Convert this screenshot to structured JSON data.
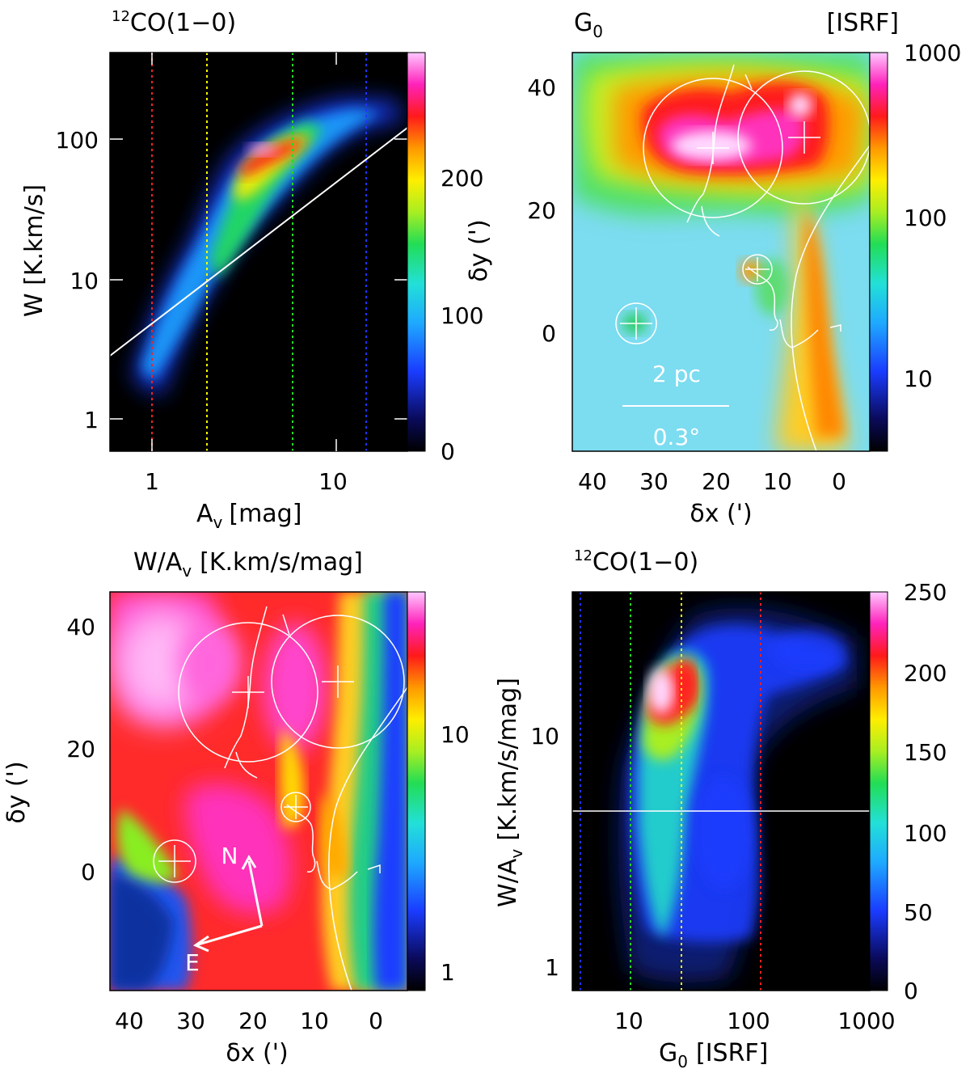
{
  "panels": {
    "top_left": {
      "title": "CO(1−0)",
      "title_sup": "12",
      "xlabel_main": "A",
      "xlabel_sub": "v",
      "xlabel_unit": "[mag]",
      "ylabel": "W [K.km/s]",
      "xticks": [
        "1",
        "10"
      ],
      "yticks": [
        "100",
        "10",
        "1"
      ],
      "cbar_ticks": [
        "200",
        "100",
        "0"
      ],
      "cbar_label": "δy (')"
    },
    "top_right": {
      "title": "G",
      "title_sub": "0",
      "title_unit": "[ISRF]",
      "xlabel": "δx (')",
      "yticks": [
        "40",
        "20",
        "0"
      ],
      "xticks": [
        "40",
        "30",
        "20",
        "10",
        "0"
      ],
      "cbar_ticks": [
        "1000",
        "100",
        "10"
      ],
      "scale_label_top": "2 pc",
      "scale_label_bottom": "0.3°"
    },
    "bottom_left": {
      "title_main": "W/A",
      "title_sub": "v",
      "title_unit": "[K.km/s/mag]",
      "ylabel": "δy (')",
      "xlabel": "δx (')",
      "yticks": [
        "40",
        "20",
        "0"
      ],
      "xticks": [
        "40",
        "30",
        "20",
        "10",
        "0"
      ],
      "cbar_ticks": [
        "10",
        "1"
      ],
      "compass_n": "N",
      "compass_e": "E"
    },
    "bottom_right": {
      "title": "CO(1−0)",
      "title_sup": "12",
      "ylabel_main": "W/A",
      "ylabel_sub": "v",
      "ylabel_unit": "[K.km/s/mag]",
      "xlabel_main": "G",
      "xlabel_sub": "0",
      "xlabel_unit": "[ISRF]",
      "xticks": [
        "10",
        "100",
        "1000"
      ],
      "yticks": [
        "10",
        "1"
      ],
      "cbar_ticks": [
        "250",
        "200",
        "150",
        "100",
        "50",
        "0"
      ]
    }
  },
  "chart_data": [
    {
      "type": "heatmap",
      "panel": "top_left",
      "description_of_axes": "2D histogram of integrated intensity W vs visual extinction Av (log-log)",
      "x_scale": "log",
      "y_scale": "log",
      "xlim": [
        0.6,
        25
      ],
      "ylim": [
        0.6,
        400
      ],
      "colorbar_range": [
        0,
        270
      ],
      "vertical_dotted_lines": [
        {
          "x": 1,
          "color": "#ff2020"
        },
        {
          "x": 2,
          "color": "#ffff00"
        },
        {
          "x": 6,
          "color": "#22dd22"
        },
        {
          "x": 15,
          "color": "#2233ff"
        }
      ],
      "reference_line": {
        "from": [
          0.6,
          2.8
        ],
        "to": [
          25,
          115
        ],
        "color": "#ffffff"
      }
    },
    {
      "type": "heatmap",
      "panel": "top_right",
      "description_of_axes": "Map of G0 in offsets δx, δy (arcmin)",
      "xlim": [
        44,
        -7
      ],
      "ylim": [
        -20,
        46
      ],
      "colorbar_scale": "log",
      "colorbar_range": [
        3,
        1000
      ]
    },
    {
      "type": "heatmap",
      "panel": "bottom_left",
      "description_of_axes": "Map of W/Av in offsets δx, δy (arcmin)",
      "xlim": [
        44,
        -7
      ],
      "ylim": [
        -20,
        46
      ],
      "colorbar_scale": "log",
      "colorbar_range": [
        0.8,
        18
      ]
    },
    {
      "type": "heatmap",
      "panel": "bottom_right",
      "description_of_axes": "2D histogram of W/Av vs G0 (log-log)",
      "x_scale": "log",
      "y_scale": "log",
      "xlim": [
        3.5,
        1100
      ],
      "ylim": [
        0.8,
        35
      ],
      "colorbar_range": [
        0,
        250
      ],
      "vertical_dotted_lines": [
        {
          "x": 4,
          "color": "#2233ff"
        },
        {
          "x": 10,
          "color": "#22dd22"
        },
        {
          "x": 25,
          "color": "#ffff00"
        },
        {
          "x": 125,
          "color": "#ff2020"
        }
      ],
      "reference_line": {
        "y": 4.4,
        "color": "#ffffff"
      }
    }
  ]
}
